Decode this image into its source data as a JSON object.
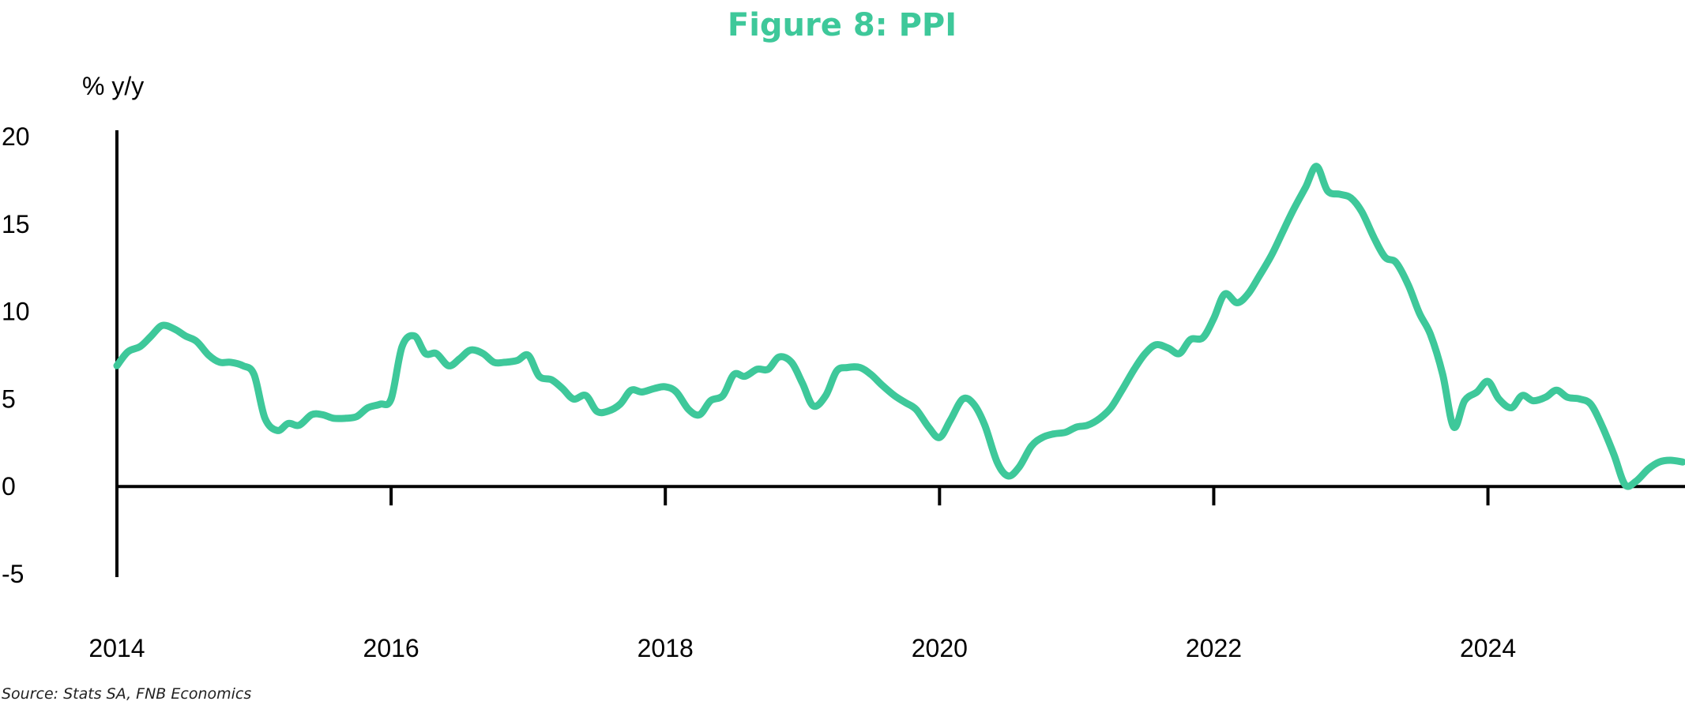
{
  "chart_data": {
    "type": "line",
    "title": "Figure 8: PPI",
    "ylabel": "% y/y",
    "xlabel": "",
    "source": "Source: Stats SA, FNB Economics",
    "ylim": [
      -5,
      20
    ],
    "y_ticks": [
      20,
      15,
      10,
      5,
      0,
      -5
    ],
    "x_ticks": [
      2014,
      2016,
      2018,
      2020,
      2022,
      2024
    ],
    "xlim": [
      2014.0,
      2025.42
    ],
    "grid": false,
    "legend": "none",
    "colors": {
      "line": "#3ec89a",
      "title": "#3ec89a",
      "axis": "#000000"
    },
    "series": [
      {
        "x": [
          2014.0,
          2014.08,
          2014.17,
          2014.25,
          2014.33,
          2014.42,
          2014.5,
          2014.58,
          2014.67,
          2014.75,
          2014.83,
          2014.92,
          2015.0,
          2015.08,
          2015.17,
          2015.25,
          2015.33,
          2015.42,
          2015.5,
          2015.58,
          2015.67,
          2015.75,
          2015.83,
          2015.92,
          2016.0,
          2016.08,
          2016.17,
          2016.25,
          2016.33,
          2016.42,
          2016.5,
          2016.58,
          2016.67,
          2016.75,
          2016.83,
          2016.92,
          2017.0,
          2017.08,
          2017.17,
          2017.25,
          2017.33,
          2017.42,
          2017.5,
          2017.58,
          2017.67,
          2017.75,
          2017.83,
          2017.92,
          2018.0,
          2018.08,
          2018.17,
          2018.25,
          2018.33,
          2018.42,
          2018.5,
          2018.58,
          2018.67,
          2018.75,
          2018.83,
          2018.92,
          2019.0,
          2019.08,
          2019.17,
          2019.25,
          2019.33,
          2019.42,
          2019.5,
          2019.58,
          2019.67,
          2019.75,
          2019.83,
          2019.92,
          2020.0,
          2020.08,
          2020.17,
          2020.25,
          2020.33,
          2020.42,
          2020.5,
          2020.58,
          2020.67,
          2020.75,
          2020.83,
          2020.92,
          2021.0,
          2021.08,
          2021.17,
          2021.25,
          2021.33,
          2021.42,
          2021.5,
          2021.58,
          2021.67,
          2021.75,
          2021.83,
          2021.92,
          2022.0,
          2022.08,
          2022.17,
          2022.25,
          2022.33,
          2022.42,
          2022.5,
          2022.58,
          2022.67,
          2022.75,
          2022.83,
          2022.92,
          2023.0,
          2023.08,
          2023.17,
          2023.25,
          2023.33,
          2023.42,
          2023.5,
          2023.58,
          2023.67,
          2023.75,
          2023.83,
          2023.92,
          2024.0,
          2024.08,
          2024.17,
          2024.25,
          2024.33,
          2024.42,
          2024.5,
          2024.58,
          2024.67,
          2024.75,
          2024.83,
          2024.92,
          2025.0,
          2025.08,
          2025.17,
          2025.25,
          2025.33,
          2025.42
        ],
        "values": [
          6.9,
          7.7,
          8.0,
          8.6,
          9.2,
          9.0,
          8.6,
          8.3,
          7.5,
          7.1,
          7.1,
          6.9,
          6.4,
          3.9,
          3.2,
          3.6,
          3.5,
          4.1,
          4.1,
          3.9,
          3.9,
          4.0,
          4.5,
          4.7,
          5.0,
          8.0,
          8.6,
          7.6,
          7.6,
          6.9,
          7.3,
          7.8,
          7.6,
          7.1,
          7.1,
          7.2,
          7.5,
          6.3,
          6.1,
          5.6,
          5.0,
          5.2,
          4.3,
          4.3,
          4.7,
          5.5,
          5.4,
          5.6,
          5.7,
          5.4,
          4.4,
          4.1,
          4.9,
          5.2,
          6.4,
          6.3,
          6.7,
          6.7,
          7.4,
          7.1,
          5.9,
          4.6,
          5.2,
          6.6,
          6.8,
          6.8,
          6.4,
          5.8,
          5.2,
          4.8,
          4.4,
          3.4,
          2.8,
          3.8,
          5.0,
          4.7,
          3.5,
          1.4,
          0.6,
          1.1,
          2.3,
          2.8,
          3.0,
          3.1,
          3.4,
          3.5,
          3.9,
          4.5,
          5.5,
          6.7,
          7.6,
          8.1,
          7.9,
          7.6,
          8.4,
          8.5,
          9.6,
          11.0,
          10.5,
          11.0,
          12.0,
          13.2,
          14.5,
          15.8,
          17.1,
          18.3,
          16.9,
          16.7,
          16.5,
          15.7,
          14.2,
          13.1,
          12.8,
          11.5,
          9.9,
          8.7,
          6.4,
          3.4,
          4.9,
          5.4,
          6.0,
          5.0,
          4.5,
          5.2,
          4.9,
          5.1,
          5.5,
          5.1,
          5.0,
          4.7,
          3.5,
          1.8,
          0.1,
          0.3,
          1.0,
          1.4,
          1.5,
          1.4
        ]
      }
    ]
  }
}
